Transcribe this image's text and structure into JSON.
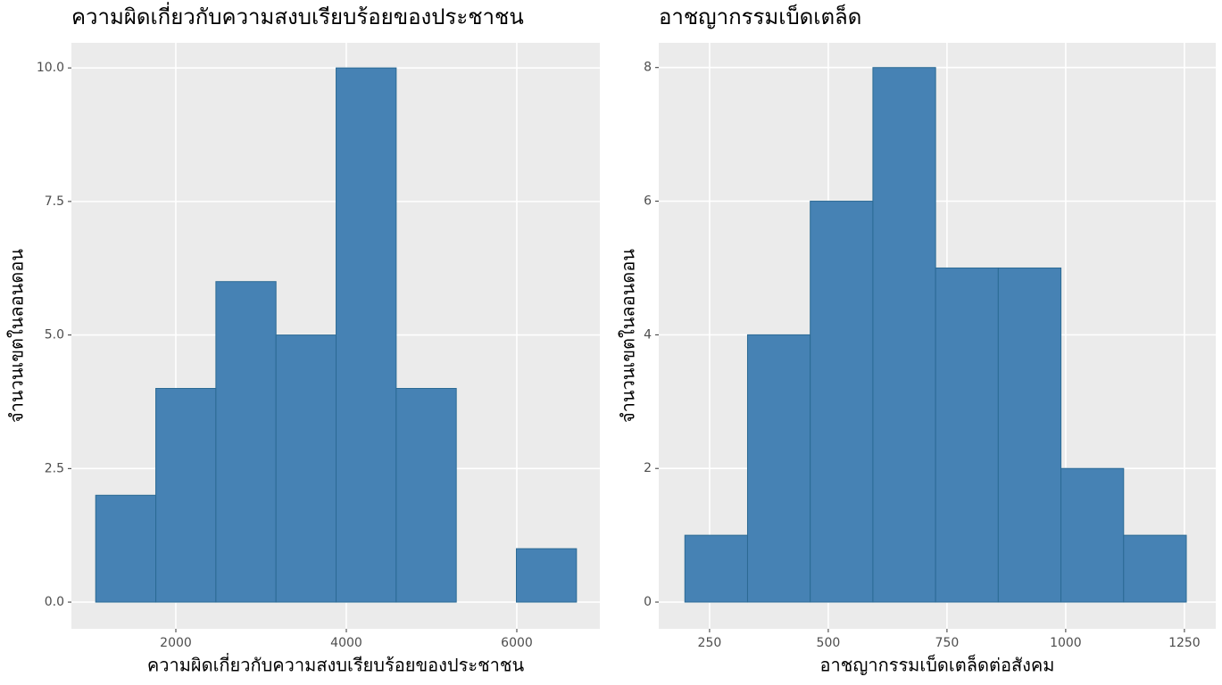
{
  "chart_data": [
    {
      "type": "histogram",
      "title": "ความผิดเกี่ยวกับความสงบเรียบร้อยของประชาชน",
      "xlabel": "ความผิดเกี่ยวกับความสงบเรียบร้อยของประชาชน",
      "ylabel": "จำนวนเขตในลอนดอน",
      "bins": [
        1060,
        1765,
        2470,
        3175,
        3880,
        4585,
        5290,
        5995,
        6700
      ],
      "values": [
        2,
        4,
        6,
        5,
        10,
        4,
        0,
        1
      ],
      "color": "#4682b4",
      "xlim": [
        775,
        6974
      ],
      "xticks": [
        2000,
        4000,
        6000
      ],
      "ylim": [
        -0.5,
        10.47
      ],
      "yticks": [
        {
          "value": 0,
          "label": "0.0"
        },
        {
          "value": 2.5,
          "label": "2.5"
        },
        {
          "value": 5,
          "label": "5.0"
        },
        {
          "value": 7.5,
          "label": "7.5"
        },
        {
          "value": 10,
          "label": "10.0"
        }
      ],
      "grid": true
    },
    {
      "type": "histogram",
      "title": "อาชญากรรมเบ็ดเตล็ด",
      "xlabel": "อาชญากรรมเบ็ดเตล็ดต่อสังคม",
      "ylabel": "จำนวนเขตในลอนดอน",
      "bins": [
        198,
        330,
        462,
        594,
        726,
        858,
        990,
        1122,
        1254
      ],
      "values": [
        1,
        4,
        6,
        8,
        5,
        5,
        2,
        1
      ],
      "color": "#4682b4",
      "xlim": [
        143,
        1316
      ],
      "xticks": [
        250,
        500,
        750,
        1000,
        1250
      ],
      "ylim": [
        -0.4,
        8.37
      ],
      "yticks": [
        0,
        2,
        4,
        6,
        8
      ],
      "grid": true
    }
  ]
}
